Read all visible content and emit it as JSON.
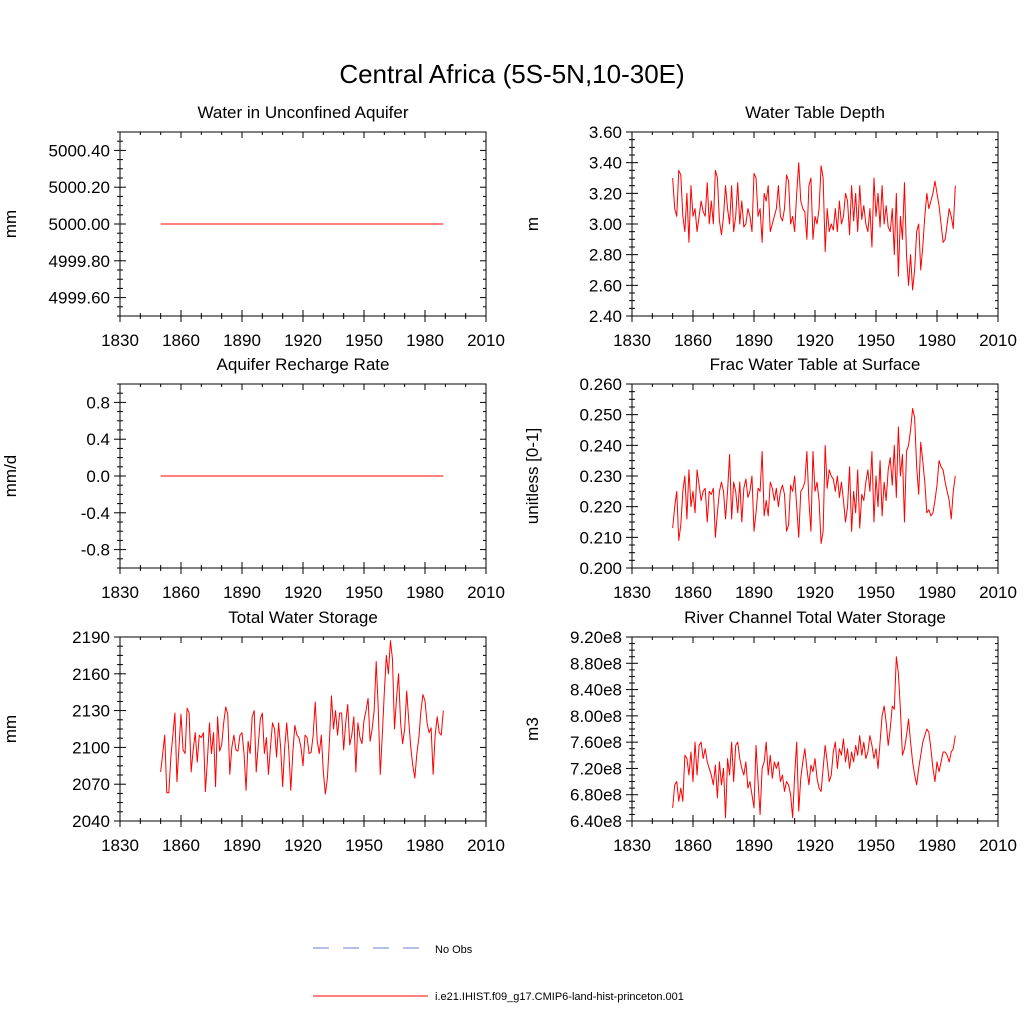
{
  "figure": {
    "title": "Central Africa (5S-5N,10-30E)",
    "legend": [
      {
        "label": "No Obs",
        "color": "#6b7fd0",
        "style": "dashed"
      },
      {
        "label": "i.e21.IHIST.f09_g17.CMIP6-land-hist-princeton.001",
        "color": "#ff0000",
        "style": "solid"
      }
    ]
  },
  "chart_data": [
    {
      "type": "line",
      "title": "Water in Unconfined Aquifer",
      "xlabel": "",
      "ylabel": "mm",
      "xlim": [
        1830,
        2010
      ],
      "ylim": [
        4999.5,
        5000.5
      ],
      "x_ticks": [
        "1830",
        "1860",
        "1890",
        "1920",
        "1950",
        "1980",
        "2010"
      ],
      "y_ticks": [
        "4999.60",
        "4999.80",
        "5000.00",
        "5000.20",
        "5000.40"
      ],
      "x_start": 1850,
      "series": [
        {
          "color": "#ff0000",
          "values": [
            5000,
            5000,
            5000,
            5000,
            5000,
            5000,
            5000,
            5000,
            5000,
            5000,
            5000,
            5000,
            5000,
            5000,
            5000,
            5000,
            5000,
            5000,
            5000,
            5000,
            5000,
            5000,
            5000,
            5000,
            5000,
            5000,
            5000,
            5000,
            5000,
            5000,
            5000,
            5000,
            5000,
            5000,
            5000,
            5000,
            5000,
            5000,
            5000,
            5000,
            5000,
            5000,
            5000,
            5000,
            5000,
            5000,
            5000,
            5000,
            5000,
            5000,
            5000,
            5000,
            5000,
            5000,
            5000,
            5000,
            5000,
            5000,
            5000,
            5000,
            5000,
            5000,
            5000,
            5000,
            5000,
            5000,
            5000,
            5000,
            5000,
            5000,
            5000,
            5000,
            5000,
            5000,
            5000,
            5000,
            5000,
            5000,
            5000,
            5000,
            5000,
            5000,
            5000,
            5000,
            5000,
            5000,
            5000,
            5000,
            5000,
            5000,
            5000,
            5000,
            5000,
            5000,
            5000,
            5000,
            5000,
            5000,
            5000,
            5000,
            5000,
            5000,
            5000,
            5000,
            5000,
            5000,
            5000,
            5000,
            5000,
            5000,
            5000,
            5000,
            5000,
            5000,
            5000,
            5000,
            5000,
            5000,
            5000,
            5000,
            5000,
            5000,
            5000,
            5000,
            5000,
            5000,
            5000,
            5000,
            5000,
            5000,
            5000,
            5000,
            5000,
            5000,
            5000,
            5000,
            5000,
            5000,
            5000,
            5000
          ]
        }
      ]
    },
    {
      "type": "line",
      "title": "Water Table Depth",
      "xlabel": "",
      "ylabel": "m",
      "xlim": [
        1830,
        2010
      ],
      "ylim": [
        2.4,
        3.6
      ],
      "x_ticks": [
        "1830",
        "1860",
        "1890",
        "1920",
        "1950",
        "1980",
        "2010"
      ],
      "y_ticks": [
        "2.40",
        "2.60",
        "2.80",
        "3.00",
        "3.20",
        "3.40",
        "3.60"
      ],
      "x_start": 1850,
      "series": [
        {
          "color": "#ff0000",
          "values": [
            3.3,
            3.1,
            3.05,
            3.35,
            3.32,
            3.05,
            2.95,
            3.2,
            2.88,
            3.25,
            3.05,
            3.1,
            2.95,
            3.05,
            3.15,
            3.08,
            3.05,
            3.27,
            3.0,
            3.15,
            3.0,
            3.35,
            3.3,
            3.02,
            2.93,
            3.05,
            3.25,
            3.1,
            3.0,
            3.25,
            2.95,
            3.05,
            3.27,
            3.0,
            3.15,
            2.98,
            3.0,
            3.1,
            3.05,
            2.95,
            3.33,
            3.3,
            3.05,
            3.1,
            2.88,
            3.2,
            3.15,
            3.25,
            2.95,
            3.0,
            3.05,
            3.1,
            3.25,
            3.05,
            3.02,
            3.1,
            3.32,
            3.28,
            3.0,
            3.05,
            2.95,
            3.2,
            3.4,
            3.15,
            3.1,
            3.08,
            2.9,
            3.25,
            3.3,
            2.9,
            3.05,
            3.0,
            3.1,
            3.38,
            3.3,
            2.82,
            3.1,
            2.95,
            3.0,
            2.96,
            3.1,
            2.95,
            3.15,
            3.0,
            3.05,
            3.2,
            3.15,
            2.93,
            3.25,
            3.02,
            3.2,
            2.95,
            3.25,
            3.03,
            3.12,
            3.0,
            2.95,
            3.1,
            2.85,
            3.3,
            3.05,
            3.2,
            2.98,
            3.25,
            3.0,
            3.12,
            2.98,
            2.95,
            3.1,
            2.8,
            3.2,
            2.66,
            3.05,
            2.9,
            3.27,
            2.8,
            2.6,
            2.8,
            2.57,
            2.7,
            2.95,
            3.0,
            2.7,
            2.85,
            3.05,
            3.2,
            3.1,
            3.15,
            3.2,
            3.28,
            3.2,
            3.12,
            3.0,
            2.88,
            2.9,
            3.0,
            3.1,
            3.05,
            2.97,
            3.25
          ]
        }
      ]
    },
    {
      "type": "line",
      "title": "Aquifer Recharge Rate",
      "xlabel": "",
      "ylabel": "mm/d",
      "xlim": [
        1830,
        2010
      ],
      "ylim": [
        -1.0,
        1.0
      ],
      "x_ticks": [
        "1830",
        "1860",
        "1890",
        "1920",
        "1950",
        "1980",
        "2010"
      ],
      "y_ticks": [
        "-0.8",
        "-0.4",
        "0.0",
        "0.4",
        "0.8"
      ],
      "x_start": 1850,
      "series": [
        {
          "color": "#ff0000",
          "values": [
            0,
            0,
            0,
            0,
            0,
            0,
            0,
            0,
            0,
            0,
            0,
            0,
            0,
            0,
            0,
            0,
            0,
            0,
            0,
            0,
            0,
            0,
            0,
            0,
            0,
            0,
            0,
            0,
            0,
            0,
            0,
            0,
            0,
            0,
            0,
            0,
            0,
            0,
            0,
            0,
            0,
            0,
            0,
            0,
            0,
            0,
            0,
            0,
            0,
            0,
            0,
            0,
            0,
            0,
            0,
            0,
            0,
            0,
            0,
            0,
            0,
            0,
            0,
            0,
            0,
            0,
            0,
            0,
            0,
            0,
            0,
            0,
            0,
            0,
            0,
            0,
            0,
            0,
            0,
            0,
            0,
            0,
            0,
            0,
            0,
            0,
            0,
            0,
            0,
            0,
            0,
            0,
            0,
            0,
            0,
            0,
            0,
            0,
            0,
            0,
            0,
            0,
            0,
            0,
            0,
            0,
            0,
            0,
            0,
            0,
            0,
            0,
            0,
            0,
            0,
            0,
            0,
            0,
            0,
            0,
            0,
            0,
            0,
            0,
            0,
            0,
            0,
            0,
            0,
            0,
            0,
            0,
            0,
            0,
            0,
            0,
            0,
            0,
            0,
            0
          ]
        }
      ]
    },
    {
      "type": "line",
      "title": "Frac Water Table at Surface",
      "xlabel": "",
      "ylabel": "unitless [0-1]",
      "xlim": [
        1830,
        2010
      ],
      "ylim": [
        0.2,
        0.26
      ],
      "x_ticks": [
        "1830",
        "1860",
        "1890",
        "1920",
        "1950",
        "1980",
        "2010"
      ],
      "y_ticks": [
        "0.200",
        "0.210",
        "0.220",
        "0.230",
        "0.240",
        "0.250",
        "0.260"
      ],
      "x_start": 1850,
      "series": [
        {
          "color": "#ff0000",
          "values": [
            0.213,
            0.22,
            0.225,
            0.209,
            0.214,
            0.225,
            0.23,
            0.216,
            0.232,
            0.22,
            0.225,
            0.218,
            0.232,
            0.227,
            0.222,
            0.225,
            0.226,
            0.215,
            0.225,
            0.224,
            0.226,
            0.21,
            0.218,
            0.225,
            0.228,
            0.225,
            0.216,
            0.225,
            0.237,
            0.216,
            0.228,
            0.225,
            0.218,
            0.228,
            0.215,
            0.226,
            0.229,
            0.223,
            0.225,
            0.23,
            0.212,
            0.218,
            0.226,
            0.225,
            0.238,
            0.217,
            0.222,
            0.217,
            0.228,
            0.226,
            0.222,
            0.226,
            0.22,
            0.225,
            0.227,
            0.224,
            0.212,
            0.214,
            0.227,
            0.225,
            0.23,
            0.22,
            0.21,
            0.225,
            0.226,
            0.228,
            0.238,
            0.222,
            0.212,
            0.238,
            0.225,
            0.228,
            0.222,
            0.208,
            0.212,
            0.24,
            0.226,
            0.232,
            0.23,
            0.229,
            0.225,
            0.23,
            0.223,
            0.228,
            0.222,
            0.215,
            0.22,
            0.233,
            0.212,
            0.225,
            0.218,
            0.232,
            0.213,
            0.224,
            0.222,
            0.228,
            0.232,
            0.225,
            0.238,
            0.215,
            0.23,
            0.22,
            0.235,
            0.217,
            0.228,
            0.222,
            0.232,
            0.236,
            0.227,
            0.24,
            0.223,
            0.246,
            0.23,
            0.237,
            0.215,
            0.238,
            0.24,
            0.245,
            0.252,
            0.249,
            0.233,
            0.224,
            0.241,
            0.235,
            0.228,
            0.218,
            0.219,
            0.217,
            0.218,
            0.222,
            0.227,
            0.235,
            0.233,
            0.232,
            0.228,
            0.225,
            0.222,
            0.216,
            0.225,
            0.23
          ]
        }
      ]
    },
    {
      "type": "line",
      "title": "Total Water Storage",
      "xlabel": "",
      "ylabel": "mm",
      "xlim": [
        1830,
        2010
      ],
      "ylim": [
        2040,
        2190
      ],
      "x_ticks": [
        "1830",
        "1860",
        "1890",
        "1920",
        "1950",
        "1980",
        "2010"
      ],
      "y_ticks": [
        "2040",
        "2070",
        "2100",
        "2130",
        "2160",
        "2190"
      ],
      "x_start": 1850,
      "series": [
        {
          "color": "#ff0000",
          "values": [
            2080,
            2095,
            2110,
            2063,
            2063,
            2092,
            2110,
            2128,
            2072,
            2100,
            2127,
            2098,
            2095,
            2132,
            2128,
            2080,
            2098,
            2112,
            2088,
            2110,
            2108,
            2112,
            2064,
            2090,
            2120,
            2095,
            2112,
            2068,
            2125,
            2097,
            2102,
            2120,
            2133,
            2127,
            2078,
            2100,
            2110,
            2098,
            2097,
            2110,
            2112,
            2095,
            2065,
            2105,
            2095,
            2125,
            2130,
            2080,
            2102,
            2123,
            2128,
            2095,
            2108,
            2078,
            2100,
            2120,
            2115,
            2092,
            2120,
            2100,
            2068,
            2100,
            2120,
            2098,
            2065,
            2096,
            2118,
            2110,
            2108,
            2100,
            2085,
            2110,
            2108,
            2095,
            2096,
            2110,
            2137,
            2105,
            2095,
            2110,
            2080,
            2062,
            2075,
            2105,
            2142,
            2115,
            2130,
            2110,
            2128,
            2128,
            2098,
            2120,
            2135,
            2102,
            2110,
            2125,
            2080,
            2120,
            2108,
            2103,
            2122,
            2130,
            2140,
            2105,
            2115,
            2130,
            2170,
            2132,
            2078,
            2110,
            2145,
            2175,
            2160,
            2187,
            2172,
            2115,
            2140,
            2160,
            2120,
            2103,
            2115,
            2146,
            2122,
            2100,
            2085,
            2075,
            2095,
            2108,
            2130,
            2143,
            2138,
            2120,
            2112,
            2116,
            2078,
            2110,
            2125,
            2112,
            2110,
            2130
          ]
        }
      ]
    },
    {
      "type": "line",
      "title": "River Channel Total Water Storage",
      "xlabel": "",
      "ylabel": "m3",
      "xlim": [
        1830,
        2010
      ],
      "ylim": [
        640000000.0,
        920000000.0
      ],
      "x_ticks": [
        "1830",
        "1860",
        "1890",
        "1920",
        "1950",
        "1980",
        "2010"
      ],
      "y_ticks": [
        "6.40e8",
        "6.80e8",
        "7.20e8",
        "7.60e8",
        "8.00e8",
        "8.40e8",
        "8.80e8",
        "9.20e8"
      ],
      "x_start": 1850,
      "series": [
        {
          "color": "#ff0000",
          "values": [
            660000000.0,
            695000000.0,
            700000000.0,
            670000000.0,
            690000000.0,
            670000000.0,
            740000000.0,
            735000000.0,
            710000000.0,
            745000000.0,
            700000000.0,
            760000000.0,
            710000000.0,
            755000000.0,
            760000000.0,
            735000000.0,
            750000000.0,
            730000000.0,
            720000000.0,
            710000000.0,
            695000000.0,
            725000000.0,
            675000000.0,
            730000000.0,
            695000000.0,
            720000000.0,
            645000000.0,
            735000000.0,
            710000000.0,
            760000000.0,
            700000000.0,
            755000000.0,
            760000000.0,
            735000000.0,
            720000000.0,
            710000000.0,
            730000000.0,
            690000000.0,
            700000000.0,
            680000000.0,
            660000000.0,
            755000000.0,
            700000000.0,
            650000000.0,
            720000000.0,
            730000000.0,
            760000000.0,
            710000000.0,
            740000000.0,
            705000000.0,
            730000000.0,
            720000000.0,
            730000000.0,
            700000000.0,
            710000000.0,
            685000000.0,
            700000000.0,
            695000000.0,
            680000000.0,
            645000000.0,
            710000000.0,
            760000000.0,
            655000000.0,
            705000000.0,
            730000000.0,
            750000000.0,
            720000000.0,
            695000000.0,
            725000000.0,
            715000000.0,
            735000000.0,
            705000000.0,
            690000000.0,
            685000000.0,
            720000000.0,
            755000000.0,
            730000000.0,
            700000000.0,
            710000000.0,
            745000000.0,
            760000000.0,
            720000000.0,
            750000000.0,
            740000000.0,
            765000000.0,
            730000000.0,
            750000000.0,
            720000000.0,
            745000000.0,
            730000000.0,
            755000000.0,
            740000000.0,
            770000000.0,
            740000000.0,
            760000000.0,
            735000000.0,
            745000000.0,
            770000000.0,
            755000000.0,
            735000000.0,
            750000000.0,
            720000000.0,
            760000000.0,
            800000000.0,
            815000000.0,
            790000000.0,
            755000000.0,
            780000000.0,
            815000000.0,
            810000000.0,
            890000000.0,
            865000000.0,
            810000000.0,
            740000000.0,
            750000000.0,
            770000000.0,
            795000000.0,
            760000000.0,
            730000000.0,
            710000000.0,
            695000000.0,
            720000000.0,
            740000000.0,
            760000000.0,
            770000000.0,
            780000000.0,
            775000000.0,
            750000000.0,
            720000000.0,
            700000000.0,
            730000000.0,
            715000000.0,
            730000000.0,
            745000000.0,
            745000000.0,
            740000000.0,
            730000000.0,
            745000000.0,
            750000000.0,
            770000000.0
          ]
        }
      ]
    }
  ]
}
